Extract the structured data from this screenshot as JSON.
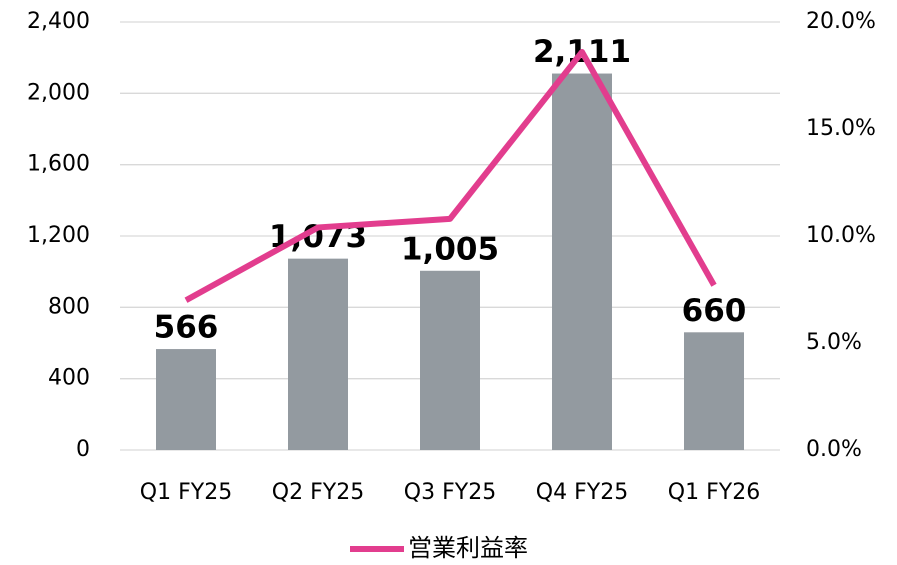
{
  "chart_data": {
    "type": "bar",
    "categories": [
      "Q1 FY25",
      "Q2 FY25",
      "Q3 FY25",
      "Q4 FY25",
      "Q1 FY26"
    ],
    "series": [
      {
        "color": "#939aa0",
        "values": [
          566,
          1073,
          1005,
          2111,
          660
        ],
        "value_labels": [
          "566",
          "1,073",
          "1,005",
          "2,111",
          "660"
        ]
      },
      {
        "name": "営業利益率",
        "type": "line",
        "axis": "y2",
        "color": "#e23d8e",
        "values": [
          7.0,
          10.4,
          10.8,
          18.6,
          7.7
        ]
      }
    ],
    "ylim": [
      0,
      2400
    ],
    "yticks": [
      0,
      400,
      800,
      {
        "value": 1200,
        "label": "1,200"
      },
      {
        "value": 1600,
        "label": "1,600"
      },
      {
        "value": 2000,
        "label": "2,000"
      },
      {
        "value": 2400,
        "label": "2,400"
      }
    ],
    "y2lim": [
      0,
      20
    ],
    "y2ticks": [
      {
        "value": 0,
        "label": "0.0%"
      },
      {
        "value": 5,
        "label": "5.0%"
      },
      {
        "value": 10,
        "label": "10.0%"
      },
      {
        "value": 15,
        "label": "15.0%"
      },
      {
        "value": 20,
        "label": "20.0%"
      }
    ],
    "grid": true,
    "legend": "bottom"
  }
}
